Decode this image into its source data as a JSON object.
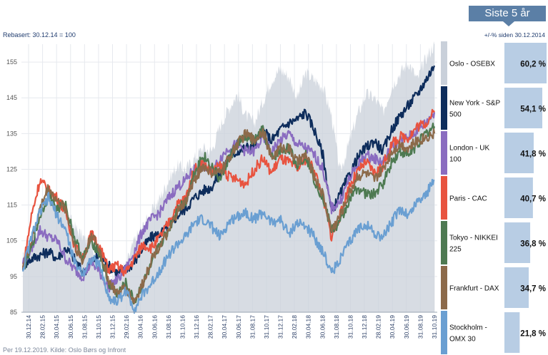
{
  "header": {
    "tab_title": "Siste 5 år",
    "rebase_label": "Rebasert: 30.12.14 = 100",
    "change_note": "+/-% siden 30.12.2014"
  },
  "source": "Per 19.12.2019. Kilde: Oslo Børs og Infront",
  "chart_data": {
    "type": "line",
    "title": "",
    "xlabel": "",
    "ylabel": "",
    "ylim": [
      85,
      160
    ],
    "yticks": [
      85,
      95,
      105,
      115,
      125,
      135,
      145,
      155
    ],
    "x_tick_labels": [
      "30.12.14",
      "28.02.15",
      "30.04.15",
      "30.06.15",
      "31.08.15",
      "31.10.15",
      "31.12.15",
      "29.02.16",
      "30.04.16",
      "30.06.16",
      "31.08.16",
      "31.10.16",
      "31.12.16",
      "28.02.17",
      "30.04.17",
      "30.06.17",
      "31.08.17",
      "31.10.17",
      "31.12.17",
      "28.02.18",
      "30.04.18",
      "30.06.18",
      "31.08.18",
      "31.10.18",
      "31.12.18",
      "28.02.19",
      "30.04.19",
      "30.06.19",
      "31.08.19",
      "31.10.19"
    ],
    "grid": true,
    "legend_position": "right",
    "series": [
      {
        "name": "Oslo - OSEBX",
        "label_line2": "",
        "change": "60,2 %",
        "change_value": 60.2,
        "color": "#c9d0da",
        "style": "area",
        "values": [
          100,
          103,
          112,
          118,
          116,
          113,
          109,
          106,
          104,
          99,
          93,
          96,
          98,
          105,
          109,
          113,
          117,
          122,
          126,
          125,
          128,
          131,
          130,
          137,
          142,
          146,
          140,
          138,
          144,
          150,
          153,
          151,
          145,
          152,
          150,
          148,
          140,
          124,
          132,
          140,
          146,
          145,
          141,
          148,
          152,
          155,
          150,
          156,
          160
        ]
      },
      {
        "name": "New York - S&P",
        "label_line2": "500",
        "change": "54,1 %",
        "change_value": 54.1,
        "color": "#0e2d5c",
        "style": "line",
        "values": [
          98,
          100,
          101,
          102,
          100,
          103,
          100,
          96,
          99,
          101,
          98,
          96,
          97,
          99,
          103,
          106,
          107,
          109,
          112,
          114,
          117,
          119,
          120,
          124,
          128,
          130,
          131,
          132,
          136,
          133,
          136,
          138,
          139,
          141,
          136,
          129,
          113,
          118,
          123,
          128,
          131,
          133,
          130,
          136,
          140,
          143,
          146,
          150,
          154
        ]
      },
      {
        "name": "London - UK",
        "label_line2": "100",
        "change": "41,8 %",
        "change_value": 41.8,
        "color": "#8a6cc0",
        "style": "line",
        "values": [
          99,
          103,
          108,
          106,
          105,
          100,
          97,
          95,
          99,
          96,
          92,
          94,
          97,
          102,
          108,
          111,
          113,
          117,
          120,
          122,
          125,
          126,
          124,
          128,
          131,
          132,
          130,
          130,
          134,
          130,
          133,
          135,
          132,
          131,
          129,
          125,
          114,
          116,
          122,
          126,
          129,
          128,
          127,
          131,
          133,
          134,
          136,
          138,
          141
        ]
      },
      {
        "name": "Paris - CAC",
        "label_line2": "",
        "change": "40,7 %",
        "change_value": 40.7,
        "color": "#e8533f",
        "style": "line",
        "values": [
          97,
          112,
          122,
          119,
          117,
          113,
          104,
          100,
          107,
          103,
          97,
          98,
          96,
          100,
          104,
          103,
          106,
          110,
          115,
          117,
          125,
          127,
          124,
          126,
          123,
          122,
          121,
          125,
          128,
          124,
          128,
          127,
          125,
          128,
          125,
          117,
          106,
          112,
          120,
          124,
          127,
          124,
          126,
          132,
          134,
          134,
          137,
          138,
          141
        ]
      },
      {
        "name": "Tokyo - NIKKEI",
        "label_line2": "225",
        "change": "36,8 %",
        "change_value": 36.8,
        "color": "#4e7a52",
        "style": "line",
        "values": [
          97,
          103,
          112,
          118,
          114,
          115,
          106,
          100,
          105,
          101,
          93,
          90,
          93,
          88,
          93,
          98,
          104,
          108,
          114,
          116,
          124,
          129,
          126,
          122,
          128,
          132,
          134,
          133,
          136,
          128,
          130,
          131,
          126,
          129,
          122,
          117,
          108,
          110,
          116,
          120,
          118,
          118,
          121,
          127,
          130,
          129,
          132,
          135,
          137
        ]
      },
      {
        "name": "Frankfurt - DAX",
        "label_line2": "",
        "change": "34,7 %",
        "change_value": 34.7,
        "color": "#8c6a4a",
        "style": "line",
        "values": [
          98,
          105,
          114,
          120,
          116,
          114,
          104,
          99,
          107,
          102,
          94,
          90,
          92,
          88,
          93,
          100,
          104,
          107,
          113,
          116,
          122,
          126,
          124,
          124,
          128,
          132,
          135,
          133,
          136,
          128,
          131,
          131,
          127,
          129,
          123,
          118,
          108,
          112,
          118,
          123,
          124,
          122,
          125,
          130,
          132,
          131,
          133,
          134,
          135
        ]
      },
      {
        "name": "Stockholm -",
        "label_line2": "OMX 30",
        "change": "21,8 %",
        "change_value": 21.8,
        "color": "#6a9fd2",
        "style": "line",
        "values": [
          97,
          106,
          113,
          117,
          112,
          108,
          99,
          96,
          100,
          98,
          89,
          88,
          91,
          86,
          90,
          93,
          97,
          101,
          104,
          106,
          110,
          111,
          109,
          106,
          110,
          112,
          113,
          111,
          113,
          110,
          111,
          107,
          110,
          109,
          106,
          102,
          96,
          100,
          104,
          108,
          110,
          107,
          106,
          110,
          114,
          112,
          116,
          118,
          122
        ]
      }
    ]
  }
}
